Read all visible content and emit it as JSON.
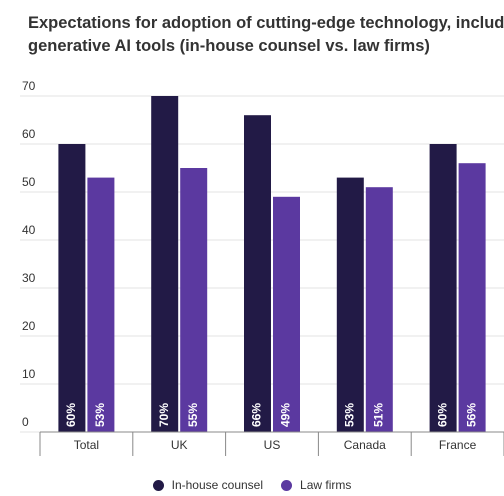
{
  "title_line1": "Expectations for adoption of cutting-edge technology, including",
  "title_line2": "generative AI tools (in-house counsel vs. law firms)",
  "chart_data": {
    "type": "bar",
    "categories": [
      "Total",
      "UK",
      "US",
      "Canada",
      "France"
    ],
    "series": [
      {
        "name": "In-house counsel",
        "color": "#221a46",
        "values": [
          60,
          70,
          66,
          53,
          60
        ]
      },
      {
        "name": "Law firms",
        "color": "#5b39a0",
        "values": [
          53,
          55,
          49,
          51,
          56
        ]
      }
    ],
    "ylim": [
      0,
      70
    ],
    "yticks": [
      0,
      10,
      20,
      30,
      40,
      50,
      60,
      70
    ],
    "value_suffix": "%",
    "grid": true,
    "legend_position": "bottom-center",
    "xlabel": "",
    "ylabel": ""
  }
}
